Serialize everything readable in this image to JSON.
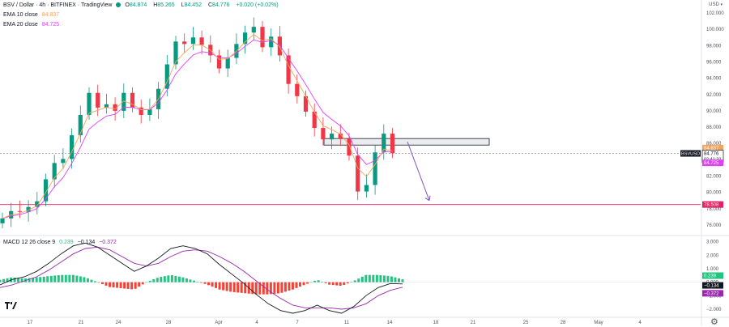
{
  "header": {
    "symbol_line": "BSV / Dollar · 4h · BITFINEX · TradingView",
    "ohlc": [
      {
        "k": "O",
        "v": "84.874"
      },
      {
        "k": "H",
        "v": "85.265"
      },
      {
        "k": "L",
        "v": "84.452"
      },
      {
        "k": "C",
        "v": "84.776"
      }
    ],
    "change": "+0.020 (+0.02%)",
    "ema10_label": "EMA 10 close",
    "ema10_value": "84.837",
    "ema20_label": "EMA 20 close",
    "ema20_value": "84.725",
    "currency": "USD"
  },
  "macd_header": {
    "label": "MACD 12 26 close 9",
    "hist": "0.239",
    "macd": "−0.134",
    "signal": "−0.372"
  },
  "colors": {
    "up": "#089981",
    "down": "#f23645",
    "ema10": "#f7a35c",
    "ema20": "#e040fb",
    "macd_line": "#131722",
    "signal_line": "#9c27b0",
    "hline": "#e91e63",
    "arrow": "#7e57c2",
    "hist_up": "#26c281",
    "hist_down": "#f44336"
  },
  "chart_data": [
    {
      "type": "candlestick",
      "title": "BSV / Dollar · 4h · BITFINEX",
      "ylim": [
        74.8,
        102.8
      ],
      "y_ticks": [
        "76.000",
        "78.000",
        "80.000",
        "82.000",
        "84.000",
        "86.000",
        "88.000",
        "90.000",
        "92.000",
        "94.000",
        "96.000",
        "98.000",
        "100.000",
        "102.000"
      ],
      "x_ticks": [
        "17",
        "21",
        "24",
        "28",
        "Apr",
        "4",
        "7",
        "11",
        "14",
        "18",
        "21",
        "25",
        "28",
        "May",
        "4"
      ],
      "points": [
        {
          "t": "16 00:00",
          "c": 76.8
        },
        {
          "t": "16 16:00",
          "c": 77.7
        },
        {
          "t": "17 08:00",
          "c": 77.6
        },
        {
          "t": "18 00:00",
          "c": 78.2
        },
        {
          "t": "18 16:00",
          "c": 78.9
        },
        {
          "t": "19 08:00",
          "c": 81.6
        },
        {
          "t": "20 00:00",
          "c": 83.6
        },
        {
          "t": "20 16:00",
          "c": 84.1
        },
        {
          "t": "21 08:00",
          "c": 87.0
        },
        {
          "t": "22 00:00",
          "c": 89.5
        },
        {
          "t": "22 16:00",
          "c": 92.2
        },
        {
          "t": "23 08:00",
          "c": 90.4
        },
        {
          "t": "24 00:00",
          "c": 90.8
        },
        {
          "t": "24 16:00",
          "c": 90.0
        },
        {
          "t": "25 08:00",
          "c": 92.2
        },
        {
          "t": "26 00:00",
          "c": 90.4
        },
        {
          "t": "26 16:00",
          "c": 89.5
        },
        {
          "t": "27 08:00",
          "c": 90.2
        },
        {
          "t": "28 00:00",
          "c": 92.7
        },
        {
          "t": "28 16:00",
          "c": 95.7
        },
        {
          "t": "29 08:00",
          "c": 98.5
        },
        {
          "t": "30 00:00",
          "c": 98.2
        },
        {
          "t": "30 16:00",
          "c": 99.0
        },
        {
          "t": "31 08:00",
          "c": 98.1
        },
        {
          "t": "Apr 01 00:00",
          "c": 96.8
        },
        {
          "t": "Apr 01 16:00",
          "c": 95.2
        },
        {
          "t": "Apr 02 08:00",
          "c": 96.5
        },
        {
          "t": "Apr 03 00:00",
          "c": 98.2
        },
        {
          "t": "Apr 03 16:00",
          "c": 99.6
        },
        {
          "t": "Apr 04 08:00",
          "c": 100.3
        },
        {
          "t": "Apr 05 00:00",
          "c": 97.8
        },
        {
          "t": "Apr 05 16:00",
          "c": 99.1
        },
        {
          "t": "Apr 06 08:00",
          "c": 96.8
        },
        {
          "t": "Apr 07 00:00",
          "c": 93.3
        },
        {
          "t": "Apr 07 16:00",
          "c": 91.8
        },
        {
          "t": "Apr 08 08:00",
          "c": 89.9
        },
        {
          "t": "Apr 09 00:00",
          "c": 87.9
        },
        {
          "t": "Apr 09 16:00",
          "c": 86.5
        },
        {
          "t": "Apr 10 08:00",
          "c": 87.2
        },
        {
          "t": "Apr 11 00:00",
          "c": 86.6
        },
        {
          "t": "Apr 11 16:00",
          "c": 84.5
        },
        {
          "t": "Apr 12 08:00",
          "c": 80.1
        },
        {
          "t": "Apr 13 00:00",
          "c": 80.9
        },
        {
          "t": "Apr 13 16:00",
          "c": 84.9
        },
        {
          "t": "Apr 14 08:00",
          "c": 87.2
        },
        {
          "t": "Apr 15 00:00",
          "c": 84.8
        }
      ],
      "ema10_color": "#f7a35c",
      "ema20_color": "#e040fb",
      "horizontal_line": {
        "value": 78.508,
        "label": "78.508"
      },
      "resistance_zone": {
        "from": 85.8,
        "to": 86.6
      },
      "projection_target": 79.0,
      "price_labels": [
        {
          "text": "84.837",
          "color": "#f7a35c"
        },
        {
          "text": "BSVUSD",
          "color": "#131722"
        },
        {
          "text": "84.776",
          "color": "#131722"
        },
        {
          "text": "02:41:32",
          "color": "#131722"
        },
        {
          "text": "84.725",
          "color": "#e040fb"
        },
        {
          "text": "78.508",
          "color": "#e91e63"
        }
      ]
    },
    {
      "type": "macd",
      "title": "MACD 12 26 close 9",
      "ylim": [
        -2.6,
        3.4
      ],
      "y_ticks": [
        "3.000",
        "2.000",
        "1.000",
        "0.000",
        "−1.000",
        "−2.000"
      ],
      "macd_values": [
        -0.2,
        0.2,
        0.4,
        0.8,
        1.4,
        2.1,
        2.7,
        2.9,
        2.6,
        2.0,
        1.4,
        0.8,
        1.2,
        1.8,
        2.5,
        2.7,
        2.5,
        2.1,
        1.3,
        0.6,
        -0.1,
        -0.9,
        -1.6,
        -2.1,
        -2.3,
        -2.1,
        -1.7,
        -2.1,
        -2.3,
        -1.8,
        -1.0,
        -0.4,
        -0.1,
        -0.13
      ],
      "signal_values": [
        -0.4,
        -0.2,
        0.1,
        0.4,
        0.9,
        1.5,
        2.1,
        2.5,
        2.6,
        2.4,
        1.9,
        1.4,
        1.2,
        1.4,
        1.9,
        2.3,
        2.4,
        2.3,
        1.9,
        1.4,
        0.8,
        0.1,
        -0.6,
        -1.2,
        -1.7,
        -1.9,
        -1.9,
        -1.9,
        -2.0,
        -1.9,
        -1.6,
        -1.0,
        -0.6,
        -0.37
      ],
      "price_labels": [
        {
          "text": "0.239",
          "color": "#26c281"
        },
        {
          "text": "−0.134",
          "color": "#131722"
        },
        {
          "text": "−0.372",
          "color": "#9c27b0"
        }
      ]
    }
  ]
}
